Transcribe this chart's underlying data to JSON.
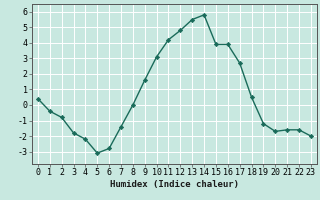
{
  "x": [
    0,
    1,
    2,
    3,
    4,
    5,
    6,
    7,
    8,
    9,
    10,
    11,
    12,
    13,
    14,
    15,
    16,
    17,
    18,
    19,
    20,
    21,
    22,
    23
  ],
  "y": [
    0.4,
    -0.4,
    -0.8,
    -1.8,
    -2.2,
    -3.1,
    -2.8,
    -1.4,
    0.0,
    1.6,
    3.1,
    4.2,
    4.8,
    5.5,
    5.8,
    3.9,
    3.9,
    2.7,
    0.5,
    -1.2,
    -1.7,
    -1.6,
    -1.6,
    -2.0
  ],
  "line_color": "#1a6b5a",
  "marker": "D",
  "marker_size": 2.2,
  "bg_color": "#c8e8e0",
  "grid_color": "#ffffff",
  "xlabel": "Humidex (Indice chaleur)",
  "xlim": [
    -0.5,
    23.5
  ],
  "ylim": [
    -3.8,
    6.5
  ],
  "yticks": [
    -3,
    -2,
    -1,
    0,
    1,
    2,
    3,
    4,
    5,
    6
  ],
  "xticks": [
    0,
    1,
    2,
    3,
    4,
    5,
    6,
    7,
    8,
    9,
    10,
    11,
    12,
    13,
    14,
    15,
    16,
    17,
    18,
    19,
    20,
    21,
    22,
    23
  ],
  "xlabel_fontsize": 6.5,
  "tick_fontsize": 6.0,
  "line_width": 1.0
}
